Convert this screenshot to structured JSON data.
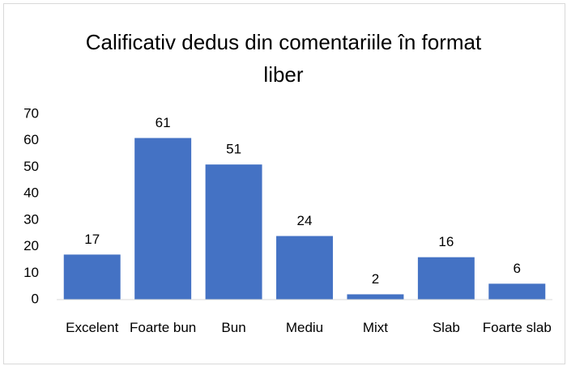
{
  "chart_data": {
    "type": "bar",
    "title": "Calificativ dedus din comentariile în format liber",
    "categories": [
      "Excelent",
      "Foarte bun",
      "Bun",
      "Mediu",
      "Mixt",
      "Slab",
      "Foarte slab"
    ],
    "values": [
      17,
      61,
      51,
      24,
      2,
      16,
      6
    ],
    "color": "#4472c4",
    "ylim": [
      0,
      70
    ],
    "yticks": [
      0,
      10,
      20,
      30,
      40,
      50,
      60,
      70
    ],
    "grid": false
  }
}
